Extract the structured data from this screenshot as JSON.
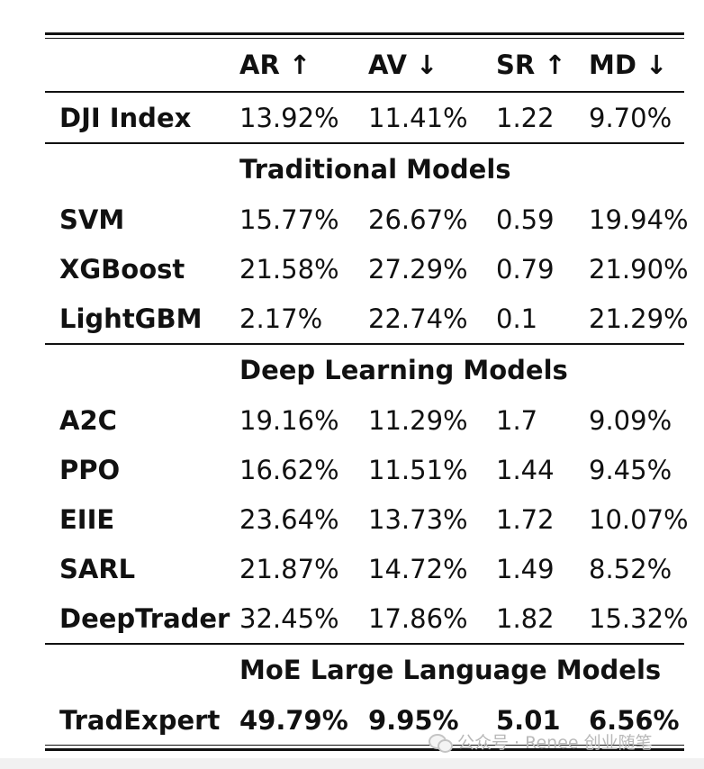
{
  "header": {
    "cols": [
      "",
      "AR ↑",
      "AV ↓",
      "SR ↑",
      "MD ↓"
    ]
  },
  "baseline": {
    "label": "DJI Index",
    "values": [
      "13.92%",
      "11.41%",
      "1.22",
      "9.70%"
    ]
  },
  "sections": [
    {
      "title": "Traditional Models",
      "rows": [
        {
          "label": "SVM",
          "values": [
            "15.77%",
            "26.67%",
            "0.59",
            "19.94%"
          ]
        },
        {
          "label": "XGBoost",
          "values": [
            "21.58%",
            "27.29%",
            "0.79",
            "21.90%"
          ]
        },
        {
          "label": "LightGBM",
          "values": [
            "2.17%",
            "22.74%",
            "0.1",
            "21.29%"
          ]
        }
      ]
    },
    {
      "title": "Deep Learning Models",
      "rows": [
        {
          "label": "A2C",
          "values": [
            "19.16%",
            "11.29%",
            "1.7",
            "9.09%"
          ]
        },
        {
          "label": "PPO",
          "values": [
            "16.62%",
            "11.51%",
            "1.44",
            "9.45%"
          ]
        },
        {
          "label": "EIIE",
          "values": [
            "23.64%",
            "13.73%",
            "1.72",
            "10.07%"
          ]
        },
        {
          "label": "SARL",
          "values": [
            "21.87%",
            "14.72%",
            "1.49",
            "8.52%"
          ]
        },
        {
          "label": "DeepTrader",
          "values": [
            "32.45%",
            "17.86%",
            "1.82",
            "15.32%"
          ]
        }
      ]
    },
    {
      "title": "MoE Large Language Models",
      "rows": [
        {
          "label": "TradExpert",
          "values": [
            "49.79%",
            "9.95%",
            "5.01",
            "6.56%"
          ]
        }
      ]
    }
  ],
  "watermark": {
    "text": "公众号 · Renee 创业随笔",
    "icon": "wechat-icon"
  }
}
